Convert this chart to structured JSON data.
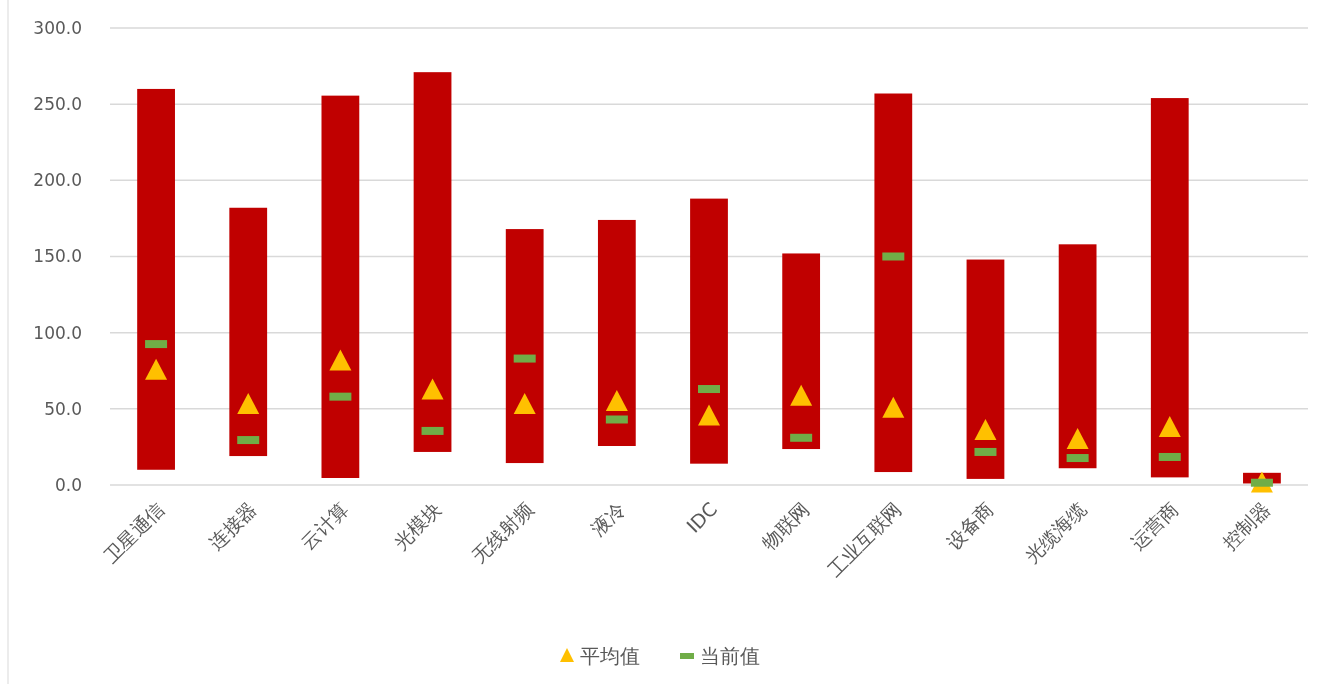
{
  "chart_data": {
    "type": "bar",
    "categories": [
      "卫星通信",
      "连接器",
      "云计算",
      "光模块",
      "无线射频",
      "液冷",
      "IDC",
      "物联网",
      "工业互联网",
      "设备商",
      "光缆海缆",
      "运营商",
      "控制器"
    ],
    "series": [
      {
        "color": "#c00000",
        "base": [
          10,
          19,
          4.6,
          21.7,
          14.4,
          25.6,
          14,
          23.6,
          8.5,
          4,
          11,
          5,
          1
        ],
        "values": [
          250,
          163,
          251,
          249.3,
          153.6,
          148.4,
          174,
          128.4,
          248.5,
          144,
          147,
          249,
          7
        ]
      },
      {
        "type": "scatter",
        "name": "平均值",
        "color": "#ffc000",
        "marker": "triangle",
        "values": [
          75,
          52.5,
          81,
          62,
          52.5,
          54.5,
          45,
          58,
          50,
          35.5,
          29.5,
          37.5,
          1
        ]
      },
      {
        "type": "scatter",
        "name": "当前值",
        "color": "#70ad47",
        "marker": "square",
        "values": [
          92.5,
          29.5,
          58,
          35.5,
          83,
          43,
          63,
          31,
          150,
          21.7,
          17.7,
          18.4,
          1.5
        ]
      }
    ],
    "ylim": [
      0,
      300
    ],
    "yticks": [
      {
        "value": 0,
        "label": "0.0"
      },
      {
        "value": 50,
        "label": "50.0"
      },
      {
        "value": 100,
        "label": "100.0"
      },
      {
        "value": 150,
        "label": "150.0"
      },
      {
        "value": 200,
        "label": "200.0"
      },
      {
        "value": 250,
        "label": "250.0"
      },
      {
        "value": 300,
        "label": "300.0"
      }
    ],
    "grid": "y",
    "legend": "bottom"
  }
}
